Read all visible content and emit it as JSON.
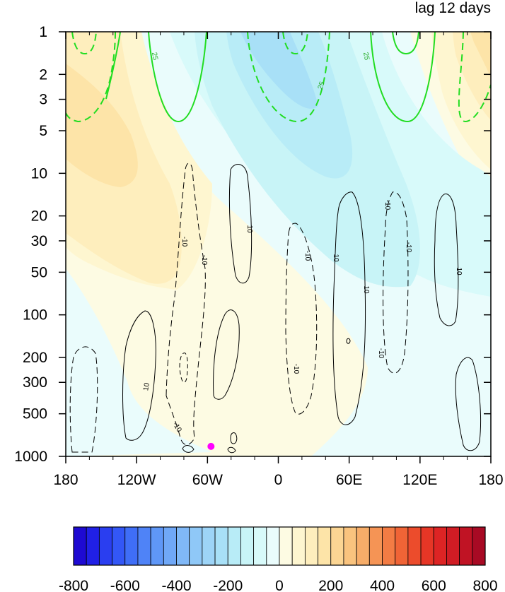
{
  "chart_data": {
    "type": "heatmap",
    "title": "lag 12 days",
    "xlabel": "",
    "ylabel": "",
    "x_ticks": [
      "180",
      "120W",
      "60W",
      "0",
      "60E",
      "120E",
      "180"
    ],
    "x_tick_values": [
      -180,
      -120,
      -60,
      0,
      60,
      120,
      180
    ],
    "xlim": [
      -180,
      180
    ],
    "y_ticks": [
      "1",
      "2",
      "3",
      "5",
      "10",
      "20",
      "30",
      "50",
      "100",
      "200",
      "300",
      "500",
      "1000"
    ],
    "y_tick_values": [
      1,
      2,
      3,
      5,
      10,
      20,
      30,
      50,
      100,
      200,
      300,
      500,
      1000
    ],
    "ylim": [
      1000,
      1
    ],
    "y_scale": "log",
    "grid": false,
    "colorbar": {
      "placement": "bottom",
      "levels": [
        -800,
        -750,
        -700,
        -650,
        -600,
        -550,
        -500,
        -450,
        -400,
        -350,
        -300,
        -250,
        -200,
        -150,
        -100,
        -50,
        0,
        50,
        100,
        150,
        200,
        250,
        300,
        350,
        400,
        450,
        500,
        550,
        600,
        650,
        700,
        750,
        800
      ],
      "labels": [
        "-800",
        "-600",
        "-400",
        "-200",
        "0",
        "200",
        "400",
        "600",
        "800"
      ],
      "label_values": [
        -800,
        -600,
        -400,
        -200,
        0,
        200,
        400,
        600,
        800
      ],
      "colors": [
        "#1e0ad2",
        "#2020e6",
        "#2a3ef0",
        "#3357f6",
        "#3f6ef7",
        "#4f83f7",
        "#5f97f7",
        "#70a8f7",
        "#80b8f7",
        "#8fc8f7",
        "#9dd4f7",
        "#a8e0f7",
        "#b8ecf7",
        "#c8f4f7",
        "#d8fafa",
        "#eafcfc",
        "#fdfbe3",
        "#fef6d0",
        "#feeebd",
        "#fde4a8",
        "#fbd593",
        "#f9c37e",
        "#f7ad69",
        "#f59455",
        "#f37c44",
        "#f06436",
        "#ec4c2c",
        "#e63626",
        "#dd2424",
        "#d01c24",
        "#c01324",
        "#a80a24"
      ]
    },
    "contour_labels": [
      "25",
      "25",
      "25",
      "-10",
      "-10",
      "10",
      "10",
      "-10",
      "-10",
      "10",
      "-10",
      "10",
      "-10",
      "-10",
      "-10",
      "10"
    ],
    "marker": {
      "color": "#ff00ff",
      "x": -57,
      "y": 850
    }
  }
}
